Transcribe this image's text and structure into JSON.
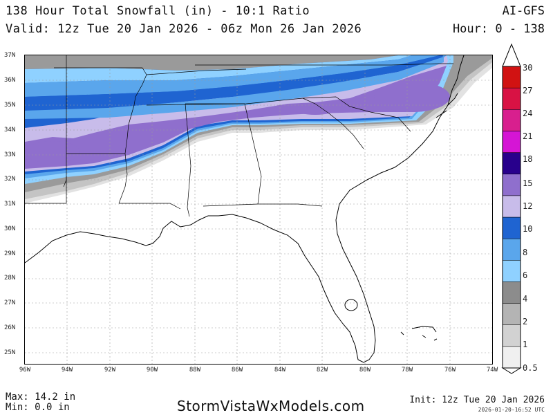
{
  "header": {
    "title": "138 Hour Total Snowfall (in) - 10:1 Ratio",
    "valid": "Valid: 12z Tue 20 Jan 2026 - 06z Mon 26 Jan 2026",
    "model": "AI-GFS",
    "hour_range": "Hour: 0 - 138"
  },
  "map": {
    "lat_labels": [
      "37N",
      "36N",
      "35N",
      "34N",
      "33N",
      "32N",
      "31N",
      "30N",
      "29N",
      "28N",
      "27N",
      "26N",
      "25N"
    ],
    "lon_labels": [
      "96W",
      "94W",
      "92W",
      "90W",
      "88W",
      "86W",
      "84W",
      "82W",
      "80W",
      "78W",
      "76W",
      "74W"
    ],
    "lat_range": [
      24.7,
      37
    ],
    "lon_range": [
      -96,
      -74
    ]
  },
  "colorbar": {
    "levels": [
      {
        "label": "0.5",
        "color": "#f0f0f0"
      },
      {
        "label": "1",
        "color": "#d2d2d2"
      },
      {
        "label": "2",
        "color": "#b4b4b4"
      },
      {
        "label": "4",
        "color": "#8c8c8c"
      },
      {
        "label": "6",
        "color": "#8fd1ff"
      },
      {
        "label": "8",
        "color": "#5aa6ec"
      },
      {
        "label": "10",
        "color": "#1f64d1"
      },
      {
        "label": "12",
        "color": "#c8bcea"
      },
      {
        "label": "15",
        "color": "#8f6fcd"
      },
      {
        "label": "18",
        "color": "#28008c"
      },
      {
        "label": "21",
        "color": "#d515d5"
      },
      {
        "label": "24",
        "color": "#d81f8e"
      },
      {
        "label": "27",
        "color": "#d81244"
      },
      {
        "label": "30",
        "color": "#d11212"
      }
    ]
  },
  "footer": {
    "max": "Max: 14.2 in",
    "min": "Min: 0.0 in",
    "brand": "StormVistaWxModels.com",
    "init": "Init: 12z Tue 20 Jan 2026",
    "timestamp": "2026-01-20-16:52 UTC"
  }
}
